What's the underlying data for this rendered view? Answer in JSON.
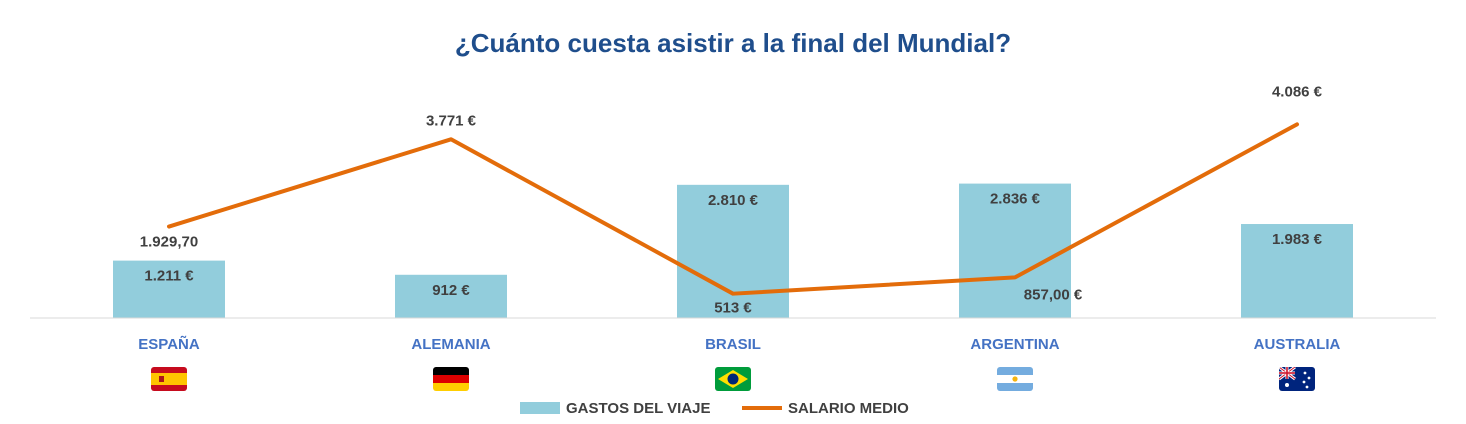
{
  "chart_data": {
    "type": "bar",
    "title": "¿Cuánto cuesta asistir a la final del Mundial?",
    "categories": [
      "ESPAÑA",
      "ALEMANIA",
      "BRASIL",
      "ARGENTINA",
      "AUSTRALIA"
    ],
    "flag_icons": [
      "flag-spain-icon",
      "flag-germany-icon",
      "flag-brazil-icon",
      "flag-argentina-icon",
      "flag-australia-icon"
    ],
    "series": [
      {
        "name": "GASTOS DEL VIAJE",
        "type": "bar",
        "color": "#92cddc",
        "values": [
          1211,
          912,
          2810,
          2836,
          1983
        ],
        "labels": [
          "1.211 €",
          "912 €",
          "2.810 €",
          "2.836 €",
          "1.983 €"
        ]
      },
      {
        "name": "SALARIO MEDIO",
        "type": "line",
        "color": "#e36c0a",
        "values": [
          1929.7,
          3771,
          513,
          857,
          4086
        ],
        "labels": [
          "1.929,70",
          "3.771 €",
          "513 €",
          "857,00 €",
          "4.086 €"
        ]
      }
    ],
    "legend_position": "bottom",
    "grid": false,
    "ylim": [
      0,
      4600
    ],
    "xlabel": "",
    "ylabel": ""
  }
}
